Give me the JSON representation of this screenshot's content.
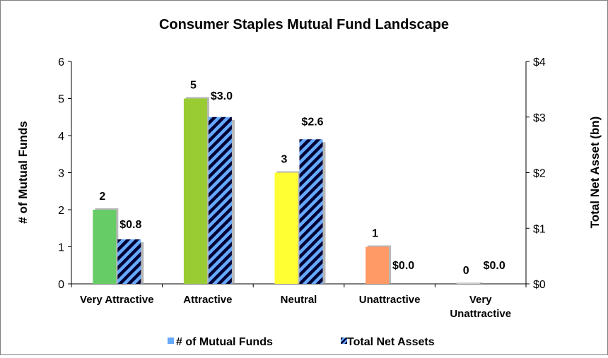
{
  "chart_data": {
    "type": "bar",
    "title": "Consumer Staples Mutual Fund Landscape",
    "categories": [
      "Very Attractive",
      "Attractive",
      "Neutral",
      "Unattractive",
      "Very Unattractive"
    ],
    "category_lines": [
      [
        "Very Attractive"
      ],
      [
        "Attractive"
      ],
      [
        "Neutral"
      ],
      [
        "Unattractive"
      ],
      [
        "Very",
        "Unattractive"
      ]
    ],
    "series": [
      {
        "name": "# of Mutual Funds",
        "axis": "left",
        "values": [
          2,
          5,
          3,
          1,
          0
        ],
        "labels": [
          "2",
          "5",
          "3",
          "1",
          "0"
        ],
        "colors": [
          "#66cc66",
          "#99cc33",
          "#ffff33",
          "#ff9966",
          "#c0c0c0"
        ],
        "legend_color": "#66aaff"
      },
      {
        "name": "Total Net Assets",
        "axis": "right",
        "values": [
          0.8,
          3.0,
          2.6,
          0.0,
          0.0
        ],
        "labels": [
          "$0.8",
          "$3.0",
          "$2.6",
          "$0.0",
          "$0.0"
        ],
        "pattern_colors": [
          "#000033",
          "#66aaff"
        ]
      }
    ],
    "ylabel": "# of Mutual Funds",
    "ylim": [
      0,
      6
    ],
    "yticks": [
      "0",
      "1",
      "2",
      "3",
      "4",
      "5",
      "6"
    ],
    "y2label": "Total Net Asset (bn)",
    "y2lim": [
      0,
      4
    ],
    "y2ticks": [
      "$0",
      "$1",
      "$2",
      "$3",
      "$4"
    ],
    "grid": false,
    "legend_position": "bottom"
  }
}
